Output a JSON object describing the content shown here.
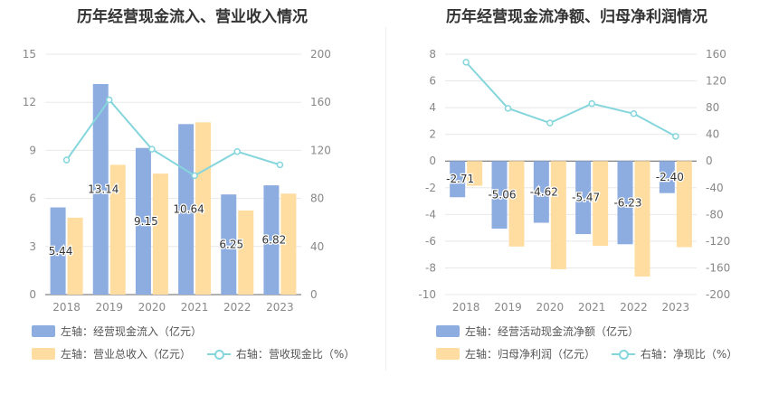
{
  "colors": {
    "bar1": "#8dade0",
    "bar2": "#ffdda0",
    "line": "#85d6dc",
    "grid": "#e8e8e8",
    "axis": "#888888"
  },
  "chart_data": [
    {
      "type": "bar",
      "title": "历年经营现金流入、营业收入情况",
      "categories": [
        "2018",
        "2019",
        "2020",
        "2021",
        "2022",
        "2023"
      ],
      "left_axis": {
        "ticks": [
          0,
          3,
          6,
          9,
          12,
          15
        ],
        "ylim": [
          0,
          15
        ]
      },
      "right_axis": {
        "ticks": [
          0,
          40,
          80,
          120,
          160,
          200
        ],
        "ylim": [
          0,
          200
        ]
      },
      "series": [
        {
          "name": "左轴：经营现金流入（亿元）",
          "kind": "bar",
          "axis": "left",
          "values": [
            5.44,
            13.14,
            9.15,
            10.64,
            6.25,
            6.82
          ],
          "labels": [
            "5.44",
            "13.14",
            "9.15",
            "10.64",
            "6.25",
            "6.82"
          ]
        },
        {
          "name": "左轴：营业总收入（亿元）",
          "kind": "bar",
          "axis": "left",
          "values": [
            4.8,
            8.1,
            7.55,
            10.75,
            5.25,
            6.3
          ]
        },
        {
          "name": "右轴：营收现金比（%）",
          "kind": "line",
          "axis": "right",
          "values": [
            112,
            162,
            121,
            99,
            119,
            108
          ]
        }
      ]
    },
    {
      "type": "bar",
      "title": "历年经营现金流净额、归母净利润情况",
      "categories": [
        "2018",
        "2019",
        "2020",
        "2021",
        "2022",
        "2023"
      ],
      "left_axis": {
        "ticks": [
          -10,
          -8,
          -6,
          -4,
          -2,
          0,
          2,
          4,
          6,
          8
        ],
        "ylim": [
          -10,
          8
        ]
      },
      "right_axis": {
        "ticks": [
          -200,
          -160,
          -120,
          -80,
          -40,
          0,
          40,
          80,
          120,
          160
        ],
        "ylim": [
          -200,
          160
        ]
      },
      "series": [
        {
          "name": "左轴：经营活动现金流净额（亿元）",
          "kind": "bar",
          "axis": "left",
          "values": [
            -2.71,
            -5.06,
            -4.62,
            -5.47,
            -6.23,
            -2.4
          ],
          "labels": [
            "-2.71",
            "-5.06",
            "-4.62",
            "-5.47",
            "-6.23",
            "-2.40"
          ]
        },
        {
          "name": "左轴：归母净利润（亿元）",
          "kind": "bar",
          "axis": "left",
          "values": [
            -1.85,
            -6.4,
            -8.1,
            -6.35,
            -8.65,
            -6.45
          ]
        },
        {
          "name": "右轴：净现比（%）",
          "kind": "line",
          "axis": "right",
          "values": [
            148,
            79,
            57,
            86,
            71,
            37
          ]
        }
      ]
    }
  ]
}
